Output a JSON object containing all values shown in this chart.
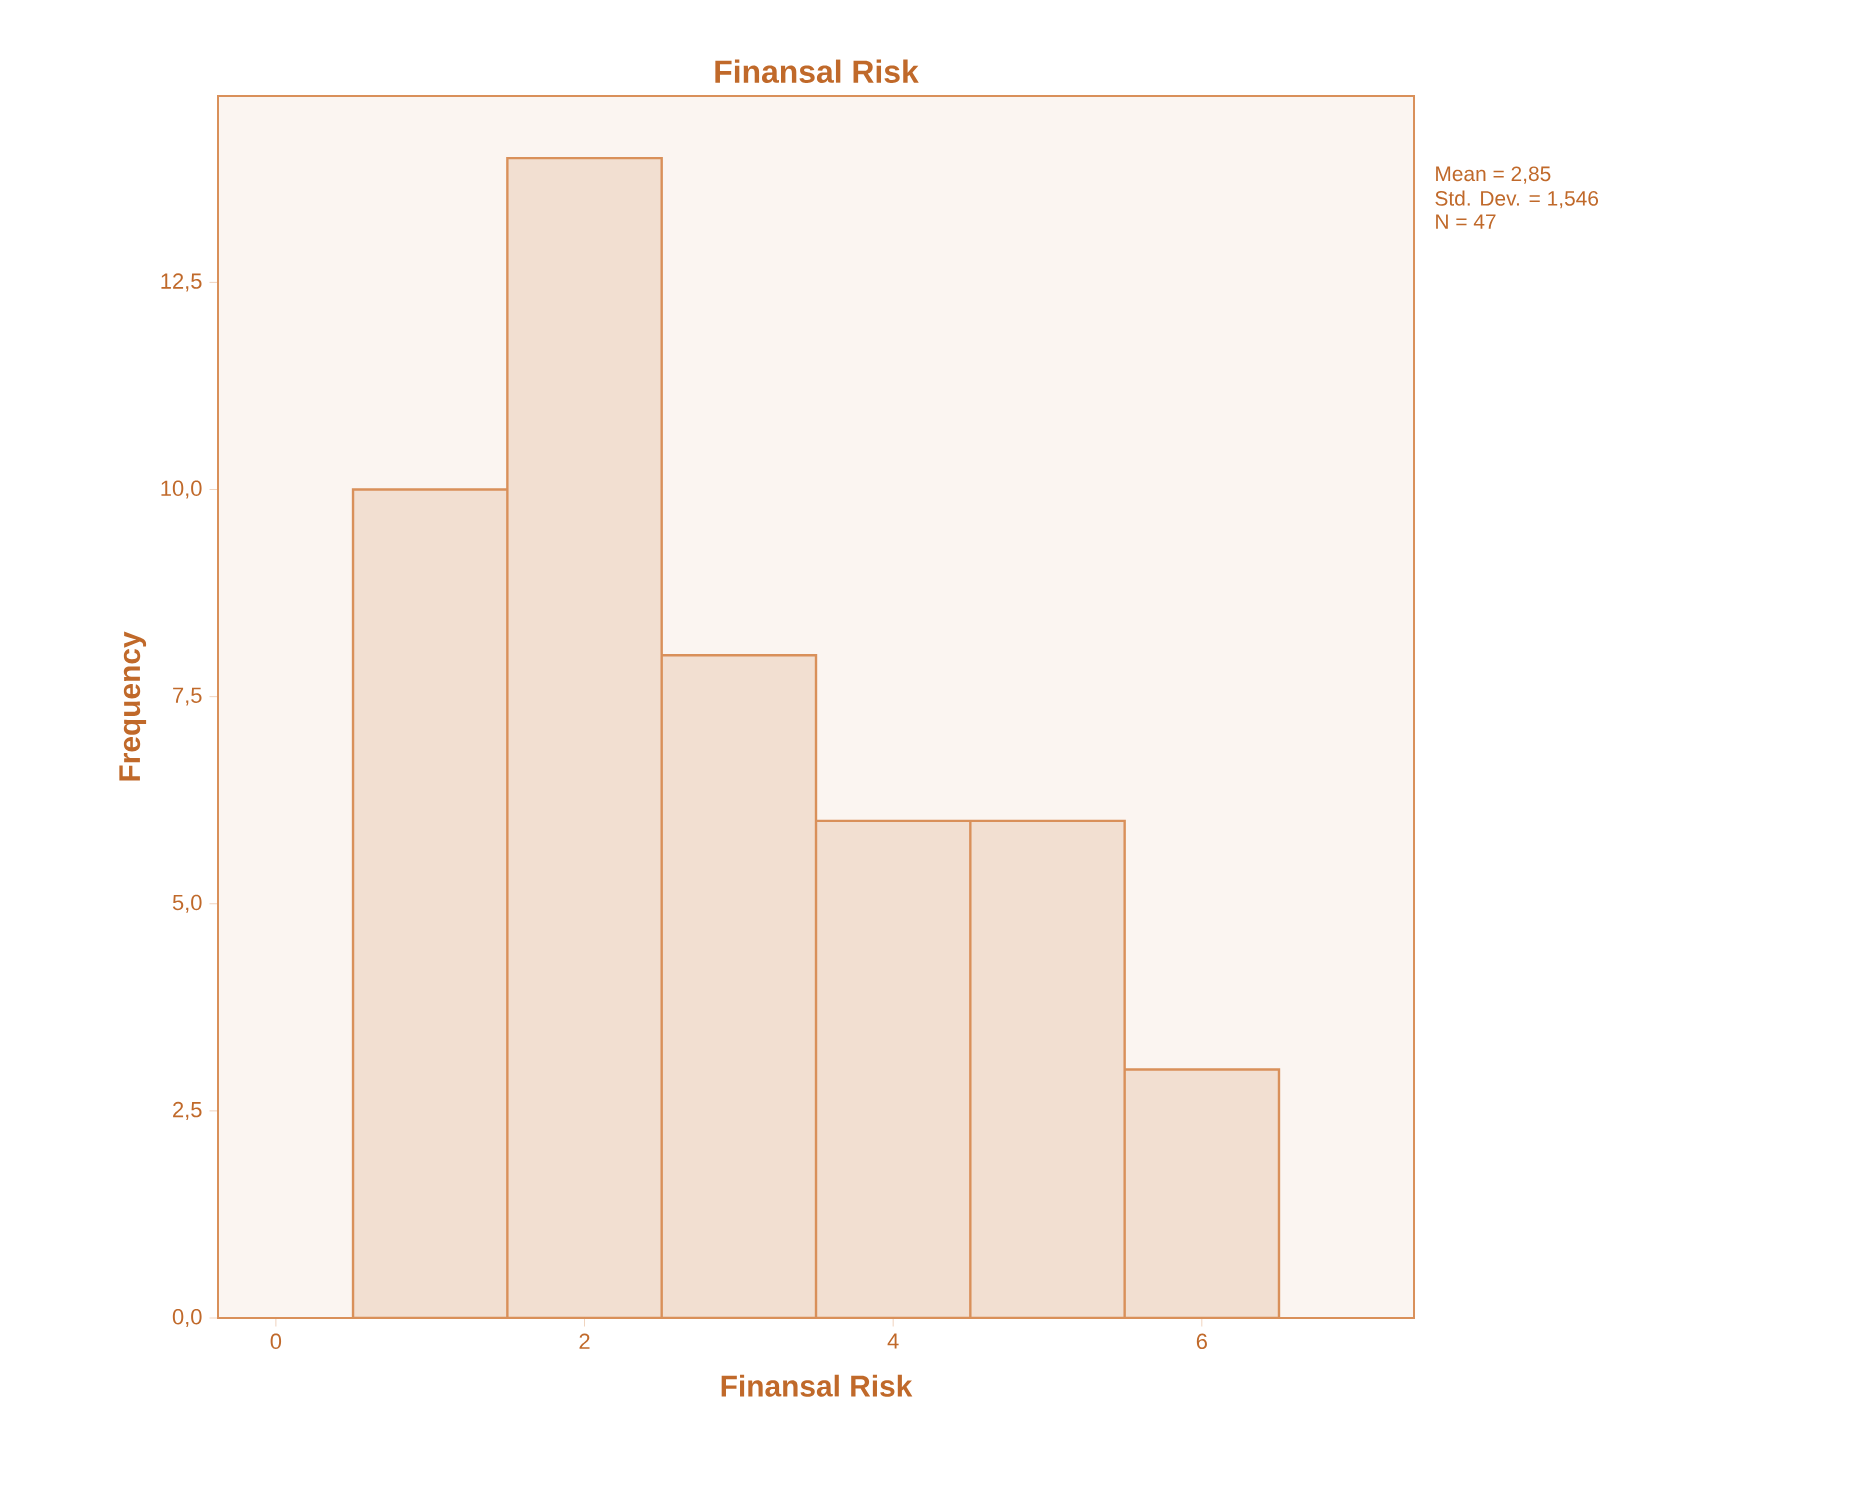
{
  "chart_data": {
    "type": "histogram",
    "title": "Finansal Risk",
    "xlabel": "Finansal Risk",
    "ylabel": "Frequency",
    "bins": [
      0.5,
      1.5,
      2.5,
      3.5,
      4.5,
      5.5,
      6.5
    ],
    "values": [
      10,
      14,
      8,
      6,
      6,
      3
    ],
    "color": "#f2dfd1",
    "xlim": [
      -0.375,
      7.375
    ],
    "ylim": [
      0,
      14.75
    ],
    "xticks": [
      0,
      2,
      4,
      6
    ],
    "yticks": [
      {
        "value": 0,
        "label": "0,0"
      },
      {
        "value": 2.5,
        "label": "2,5"
      },
      {
        "value": 5,
        "label": "5,0"
      },
      {
        "value": 7.5,
        "label": "7,5"
      },
      {
        "value": 10,
        "label": "10,0"
      },
      {
        "value": 12.5,
        "label": "12,5"
      }
    ],
    "annotations": [
      "Mean = 2,85",
      "Std. Dev. = 1,546",
      "N = 47"
    ],
    "line_style": "solid"
  }
}
